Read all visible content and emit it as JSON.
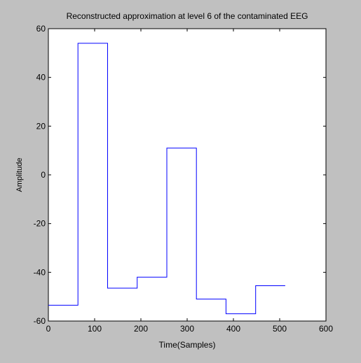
{
  "figure": {
    "background": "#c0c0c0",
    "axes_background": "#ffffff",
    "line_color": "#0000ff",
    "axis_color": "#000000"
  },
  "chart_data": {
    "type": "line",
    "title": "Reconstructed approximation at level 6 of the contaminated EEG",
    "xlabel": "Time(Samples)",
    "ylabel": "Amplitude",
    "xlim": [
      0,
      600
    ],
    "ylim": [
      -60,
      60
    ],
    "xticks": [
      0,
      100,
      200,
      300,
      400,
      500,
      600
    ],
    "yticks": [
      -60,
      -40,
      -20,
      0,
      20,
      40,
      60
    ],
    "grid": false,
    "series": [
      {
        "style": "step",
        "x": [
          0,
          64,
          64,
          128,
          128,
          192,
          192,
          256,
          256,
          320,
          320,
          384,
          384,
          448,
          448,
          512
        ],
        "y": [
          -53.5,
          -53.5,
          54,
          54,
          -46.5,
          -46.5,
          -42,
          -42,
          11,
          11,
          -51,
          -51,
          -57,
          -57,
          -45.5,
          -45.5
        ]
      }
    ]
  }
}
